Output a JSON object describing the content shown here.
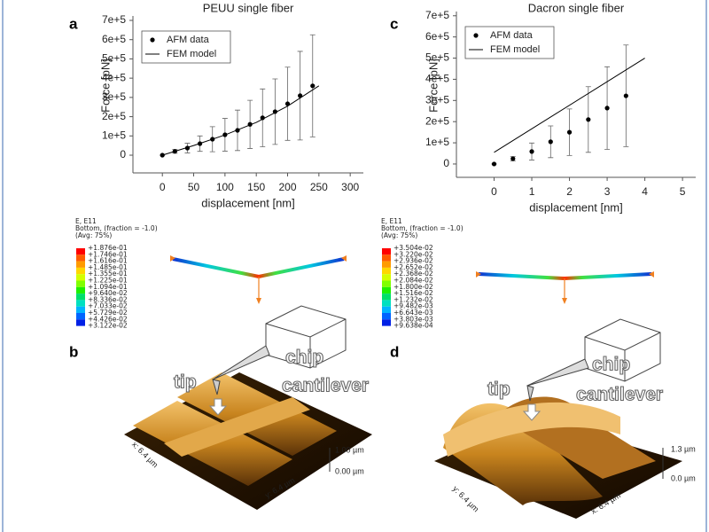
{
  "chart_data": [
    {
      "type": "scatter",
      "title": "PEUU single fiber",
      "x_label": "displacement [nm]",
      "y_label": "Force [pN]",
      "xlim": [
        -47,
        321
      ],
      "ylim": [
        -92000,
        723000
      ],
      "xticks": [
        0,
        50,
        100,
        150,
        200,
        250,
        300
      ],
      "yticks": [
        0,
        {
          "value": 100000,
          "label": "1e+5"
        },
        {
          "value": 200000,
          "label": "2e+5"
        },
        {
          "value": 300000,
          "label": "3e+5"
        },
        {
          "value": 400000,
          "label": "4e+5"
        },
        {
          "value": 500000,
          "label": "5e+5"
        },
        {
          "value": 600000,
          "label": "6e+5"
        },
        {
          "value": 700000,
          "label": "7e+5"
        }
      ],
      "legend": "upper left",
      "series": [
        {
          "name": "AFM data",
          "mode": "markers",
          "color": "#000000",
          "x": [
            0,
            20,
            40,
            60,
            80,
            100,
            120,
            140,
            160,
            180,
            200,
            220,
            240
          ],
          "values": [
            0,
            20000,
            37000,
            60000,
            83000,
            106000,
            129000,
            160000,
            194000,
            226000,
            267000,
            309000,
            360000
          ],
          "errors": [
            0,
            10000,
            25000,
            40000,
            65000,
            85000,
            105000,
            125000,
            150000,
            170000,
            190000,
            230000,
            265000
          ]
        },
        {
          "name": "FEM model",
          "mode": "line",
          "color": "#000000",
          "x": [
            0,
            50,
            100,
            150,
            200,
            250
          ],
          "values": [
            0,
            50000,
            105000,
            170000,
            255000,
            360000
          ]
        }
      ]
    },
    {
      "type": "scatter",
      "title": "Dacron single fiber",
      "x_label": "displacement [nm]",
      "y_label": "Force [pN]",
      "xlim": [
        -1,
        5.35
      ],
      "ylim": [
        -63000,
        720000
      ],
      "xticks": [
        0,
        1,
        2,
        3,
        4,
        5
      ],
      "yticks": [
        0,
        {
          "value": 100000,
          "label": "1e+5"
        },
        {
          "value": 200000,
          "label": "2e+5"
        },
        {
          "value": 300000,
          "label": "3e+5"
        },
        {
          "value": 400000,
          "label": "4e+5"
        },
        {
          "value": 500000,
          "label": "5e+5"
        },
        {
          "value": 600000,
          "label": "6e+5"
        },
        {
          "value": 700000,
          "label": "7e+5"
        }
      ],
      "legend": "upper left",
      "series": [
        {
          "name": "AFM data",
          "mode": "markers",
          "color": "#000000",
          "x": [
            0,
            0.5,
            1,
            1.5,
            2,
            2.5,
            3,
            3.5
          ],
          "values": [
            0,
            25000,
            59000,
            105000,
            150000,
            210000,
            264000,
            322000
          ],
          "errors": [
            0,
            10000,
            40000,
            75000,
            110000,
            155000,
            195000,
            240000
          ]
        },
        {
          "name": "FEM model",
          "mode": "line",
          "color": "#000000",
          "x": [
            0,
            4
          ],
          "values": [
            55000,
            500000
          ]
        }
      ]
    }
  ],
  "panel_labels": [
    "a",
    "b",
    "c",
    "d"
  ],
  "fem_legends": [
    {
      "lines": [
        "E, E11",
        "Bottom, (fraction = -1.0)",
        "(Avg: 75%)"
      ],
      "values": [
        "+1.876e-01",
        "+1.746e-01",
        "+1.616e-01",
        "+1.485e-01",
        "+1.355e-01",
        "+1.225e-01",
        "+1.094e-01",
        "+9.640e-02",
        "+8.336e-02",
        "+7.033e-02",
        "+5.729e-02",
        "+4.426e-02",
        "+3.122e-02"
      ]
    },
    {
      "lines": [
        "E, E11",
        "Bottom, (fraction = -1.0)",
        "(Avg: 75%)"
      ],
      "values": [
        "+3.504e-02",
        "+3.220e-02",
        "+2.936e-02",
        "+2.652e-02",
        "+2.368e-02",
        "+2.084e-02",
        "+1.800e-02",
        "+1.516e-02",
        "+1.232e-02",
        "+9.482e-03",
        "+6.643e-03",
        "+3.803e-03",
        "+9.638e-04"
      ]
    }
  ],
  "afm_panels": [
    {
      "chip": "chip",
      "tip": "tip",
      "cantilever": "cantilever",
      "z_top": "1.00 µm",
      "z_bottom": "0.00 µm",
      "x_axis": "x: 6.4 µm",
      "y_axis": "y: 6.4 µm"
    },
    {
      "chip": "chip",
      "tip": "tip",
      "cantilever": "cantilever",
      "z_top": "1.3 µm",
      "z_bottom": "0.0 µm",
      "x_axis": "x: 6.4 µm",
      "y_axis": "y: 6.4 µm"
    }
  ]
}
